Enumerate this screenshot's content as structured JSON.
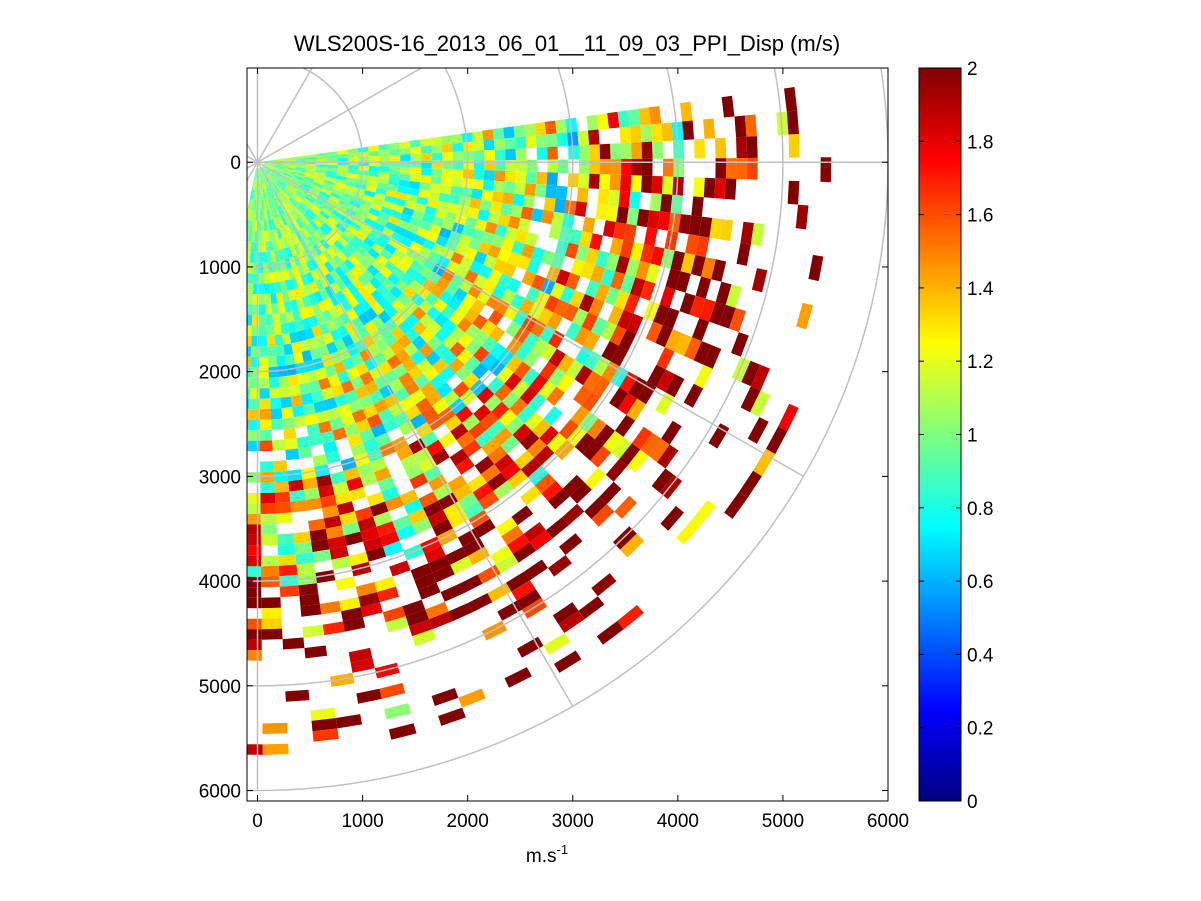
{
  "chart_data": {
    "type": "heatmap",
    "subtype": "ppi-polar-sector",
    "title": "WLS200S-16_2013_06_01__11_09_03_PPI_Disp (m/s)",
    "xlabel": "m.s",
    "xlabel_superscript": "-1",
    "ylabel": "",
    "xlim": [
      -100,
      6000
    ],
    "ylim": [
      6100,
      -900
    ],
    "x_ticks": [
      0,
      1000,
      2000,
      3000,
      4000,
      5000,
      6000
    ],
    "y_ticks": [
      0,
      1000,
      2000,
      3000,
      4000,
      5000,
      6000
    ],
    "x_tick_labels": [
      "0",
      "1000",
      "2000",
      "3000",
      "4000",
      "5000",
      "6000"
    ],
    "y_tick_labels": [
      "0",
      "1000",
      "2000",
      "3000",
      "4000",
      "5000",
      "6000"
    ],
    "colorbar": {
      "colormap": "jet",
      "range": [
        0,
        2
      ],
      "ticks": [
        0,
        0.2,
        0.4,
        0.6,
        0.8,
        1,
        1.2,
        1.4,
        1.6,
        1.8,
        2
      ],
      "tick_labels": [
        "0",
        "0.2",
        "0.4",
        "0.6",
        "0.8",
        "1",
        "1.2",
        "1.4",
        "1.6",
        "1.8",
        "2"
      ]
    },
    "polar_grid": {
      "range_rings_m": [
        1000,
        2000,
        3000,
        4000,
        5000,
        6000
      ],
      "spokes_deg": [
        0,
        30,
        60,
        90,
        120,
        150
      ],
      "color": "#c0c0c0"
    },
    "sector": {
      "azimuth_start_deg": 0,
      "azimuth_end_deg": 100,
      "max_range_m": 5600,
      "range_gate_m": 100,
      "azimuth_step_deg": 2.5
    },
    "value_summary": {
      "near_range_typical": 1.0,
      "far_range_typical": 2.0,
      "description_zones": [
        {
          "range_m": [
            0,
            2000
          ],
          "value": 1.0
        },
        {
          "range_m": [
            2000,
            3000
          ],
          "value": 1.1
        },
        {
          "range_m": [
            3000,
            4000
          ],
          "value": 1.4
        },
        {
          "range_m": [
            4000,
            5600
          ],
          "value": 1.9
        }
      ]
    }
  }
}
